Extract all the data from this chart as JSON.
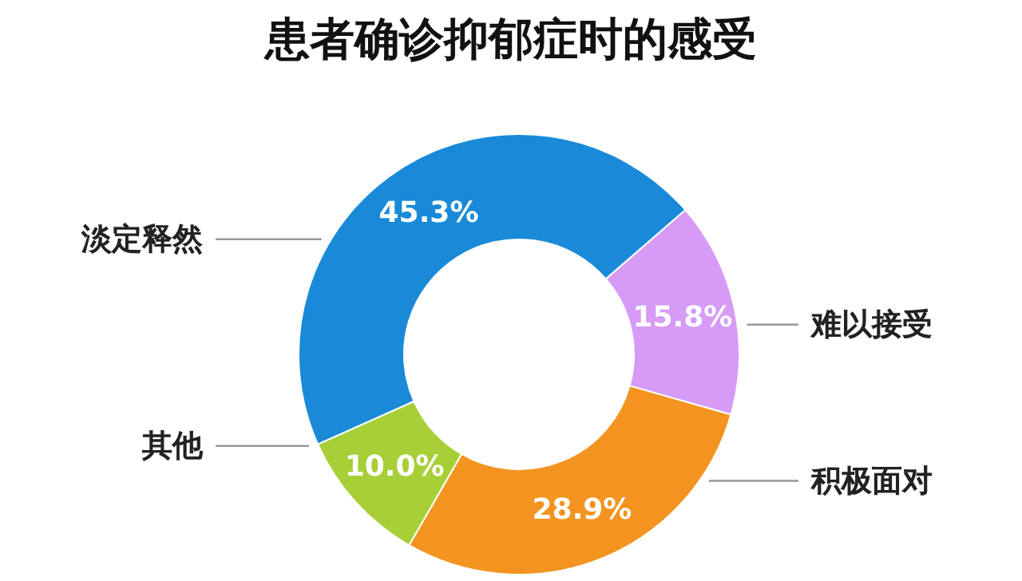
{
  "chart_data": {
    "type": "donut",
    "title": "患者确诊抑郁症时的感受",
    "categories": [
      "难以接受",
      "积极面对",
      "其他",
      "淡定释然"
    ],
    "values": [
      15.8,
      28.9,
      10.0,
      45.3
    ],
    "colors": [
      "#d59bf6",
      "#f2941f",
      "#a6cf38",
      "#1a8ad8"
    ],
    "value_labels": [
      "15.8%",
      "28.9%",
      "10.0%",
      "45.3%"
    ]
  }
}
